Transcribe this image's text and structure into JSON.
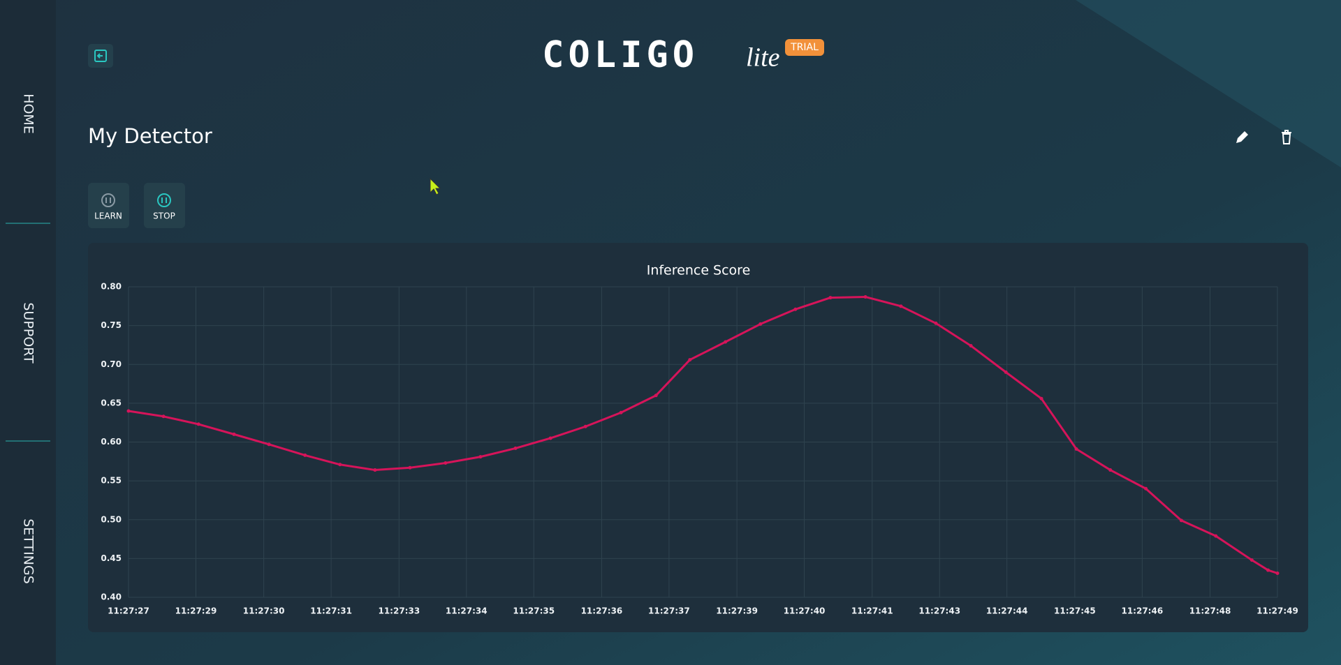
{
  "nav": {
    "items": [
      "HOME",
      "SUPPORT",
      "SETTINGS"
    ]
  },
  "header": {
    "logo": "COLIGO",
    "logo_suffix": "lite",
    "badge": "TRIAL"
  },
  "page": {
    "title": "My Detector",
    "buttons": [
      "LEARN",
      "STOP"
    ]
  },
  "chart_data": {
    "type": "line",
    "title": "Inference Score",
    "x": [
      27.0,
      27.67,
      28.34,
      29.02,
      29.69,
      30.38,
      31.05,
      31.72,
      32.39,
      33.07,
      33.74,
      34.41,
      35.08,
      35.75,
      36.43,
      37.1,
      37.75,
      38.43,
      39.1,
      39.77,
      40.44,
      41.11,
      41.79,
      42.46,
      43.13,
      43.8,
      44.48,
      45.15,
      45.8,
      46.48,
      47.16,
      47.82,
      48.51,
      48.82,
      49.0
    ],
    "series": [
      {
        "color": "#d6145a",
        "values": [
          0.64,
          0.633,
          0.623,
          0.61,
          0.597,
          0.583,
          0.571,
          0.564,
          0.567,
          0.573,
          0.581,
          0.592,
          0.605,
          0.62,
          0.638,
          0.66,
          0.706,
          0.729,
          0.752,
          0.771,
          0.786,
          0.787,
          0.775,
          0.753,
          0.724,
          0.69,
          0.656,
          0.591,
          0.564,
          0.54,
          0.499,
          0.479,
          0.448,
          0.435,
          0.431
        ]
      }
    ],
    "xlim": [
      27,
      49
    ],
    "xticks": [
      {
        "value": 27,
        "label": "11:27:27"
      },
      {
        "value": 28.29,
        "label": "11:27:29"
      },
      {
        "value": 29.59,
        "label": "11:27:30"
      },
      {
        "value": 30.88,
        "label": "11:27:31"
      },
      {
        "value": 32.18,
        "label": "11:27:33"
      },
      {
        "value": 33.47,
        "label": "11:27:34"
      },
      {
        "value": 34.76,
        "label": "11:27:35"
      },
      {
        "value": 36.06,
        "label": "11:27:36"
      },
      {
        "value": 37.35,
        "label": "11:27:37"
      },
      {
        "value": 38.65,
        "label": "11:27:39"
      },
      {
        "value": 39.94,
        "label": "11:27:40"
      },
      {
        "value": 41.24,
        "label": "11:27:41"
      },
      {
        "value": 42.53,
        "label": "11:27:43"
      },
      {
        "value": 43.82,
        "label": "11:27:44"
      },
      {
        "value": 45.12,
        "label": "11:27:45"
      },
      {
        "value": 46.41,
        "label": "11:27:46"
      },
      {
        "value": 47.71,
        "label": "11:27:48"
      },
      {
        "value": 49,
        "label": "11:27:49"
      }
    ],
    "ylim": [
      0.4,
      0.8
    ],
    "yticks": [
      {
        "value": 0.4,
        "label": "0.40"
      },
      {
        "value": 0.45,
        "label": "0.45"
      },
      {
        "value": 0.5,
        "label": "0.50"
      },
      {
        "value": 0.55,
        "label": "0.55"
      },
      {
        "value": 0.6,
        "label": "0.60"
      },
      {
        "value": 0.65,
        "label": "0.65"
      },
      {
        "value": 0.7,
        "label": "0.70"
      },
      {
        "value": 0.75,
        "label": "0.75"
      },
      {
        "value": 0.8,
        "label": "0.80"
      }
    ],
    "grid": true
  }
}
